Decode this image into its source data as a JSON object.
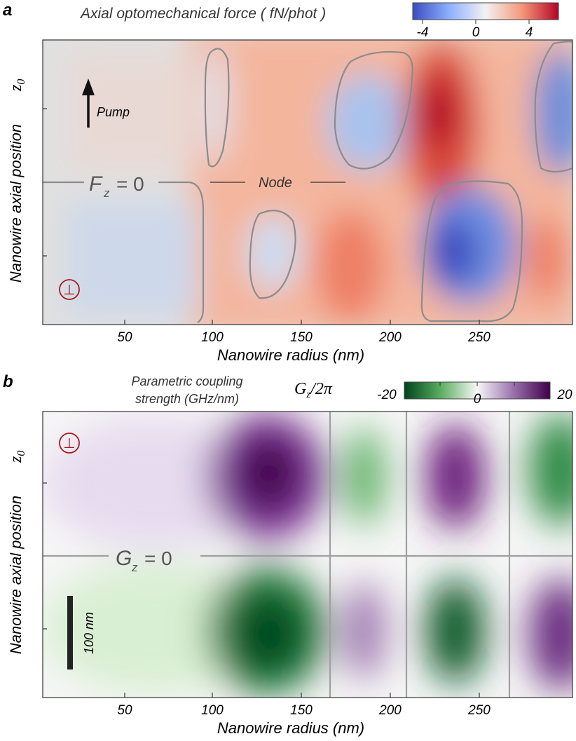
{
  "panels": {
    "a": {
      "letter": "a",
      "colorbar": {
        "title": "Axial optomechanical force ( fN/phot )",
        "ticks": [
          "-4",
          "0",
          "4"
        ],
        "colors": [
          "#3b4cc0",
          "#f2f2f2",
          "#b40426"
        ]
      },
      "ylabel": "Nanowire axial position",
      "ylabel_symbol": "z0",
      "xlabel": "Nanowire radius (nm)",
      "xticks": [
        "50",
        "100",
        "150",
        "200",
        "250"
      ],
      "annotations": {
        "pump": "Pump",
        "zero_F": "F",
        "zero_sub": "z",
        "zero_eq": "= 0",
        "node": "Node",
        "polarization": "⊥"
      }
    },
    "b": {
      "letter": "b",
      "colorbar": {
        "title_line1": "Parametric coupling",
        "title_line2": "strength (GHz/nm)",
        "symbol": "Gz/2π",
        "ticks": [
          "-20",
          "0",
          "20"
        ],
        "colors": [
          "#00441b",
          "#f7f7f7",
          "#40004b"
        ]
      },
      "ylabel": "Nanowire axial position",
      "ylabel_symbol": "z0",
      "xlabel": "Nanowire radius (nm)",
      "xticks": [
        "50",
        "100",
        "150",
        "200",
        "250"
      ],
      "annotations": {
        "zero_G": "G",
        "zero_sub": "z",
        "zero_eq": "= 0",
        "scalebar": "100 nm",
        "polarization": "⊥"
      }
    }
  },
  "chart_data": [
    {
      "type": "heatmap",
      "panel": "a",
      "title": "Axial optomechanical force ( fN/phot )",
      "xlabel": "Nanowire radius (nm)",
      "ylabel": "Nanowire axial position z0",
      "xlim": [
        5,
        300
      ],
      "colorbar_range": [
        -6,
        6
      ],
      "zero_line_y": "node",
      "features": [
        {
          "r": 65,
          "z": "upper",
          "value": 0.2
        },
        {
          "r": 65,
          "z": "lower",
          "value": -0.8
        },
        {
          "r": 100,
          "z": "upper",
          "value": -0.4
        },
        {
          "r": 135,
          "z": "lower",
          "value": -0.6
        },
        {
          "r": 180,
          "z": "upper",
          "value": -1.8
        },
        {
          "r": 225,
          "z": "upper",
          "value": 6
        },
        {
          "r": 233,
          "z": "lower",
          "value": -6
        },
        {
          "r": 295,
          "z": "upper",
          "value": -3.5
        },
        {
          "r": 165,
          "z": "lower",
          "value": 3
        },
        {
          "r": 285,
          "z": "lower",
          "value": 3
        }
      ]
    },
    {
      "type": "heatmap",
      "panel": "b",
      "title": "Parametric coupling strength (GHz/nm)",
      "xlabel": "Nanowire radius (nm)",
      "ylabel": "Nanowire axial position z0",
      "xlim": [
        5,
        300
      ],
      "colorbar_range": [
        -22,
        22
      ],
      "zero_lines_x": [
        165,
        208,
        265
      ],
      "features": [
        {
          "r": 133,
          "z": "upper",
          "value": 22
        },
        {
          "r": 133,
          "z": "lower",
          "value": -22
        },
        {
          "r": 187,
          "z": "upper",
          "value": -14
        },
        {
          "r": 187,
          "z": "lower",
          "value": 14
        },
        {
          "r": 235,
          "z": "upper",
          "value": 20
        },
        {
          "r": 235,
          "z": "lower",
          "value": -20
        },
        {
          "r": 295,
          "z": "upper",
          "value": -16
        },
        {
          "r": 295,
          "z": "lower",
          "value": 16
        }
      ]
    }
  ]
}
